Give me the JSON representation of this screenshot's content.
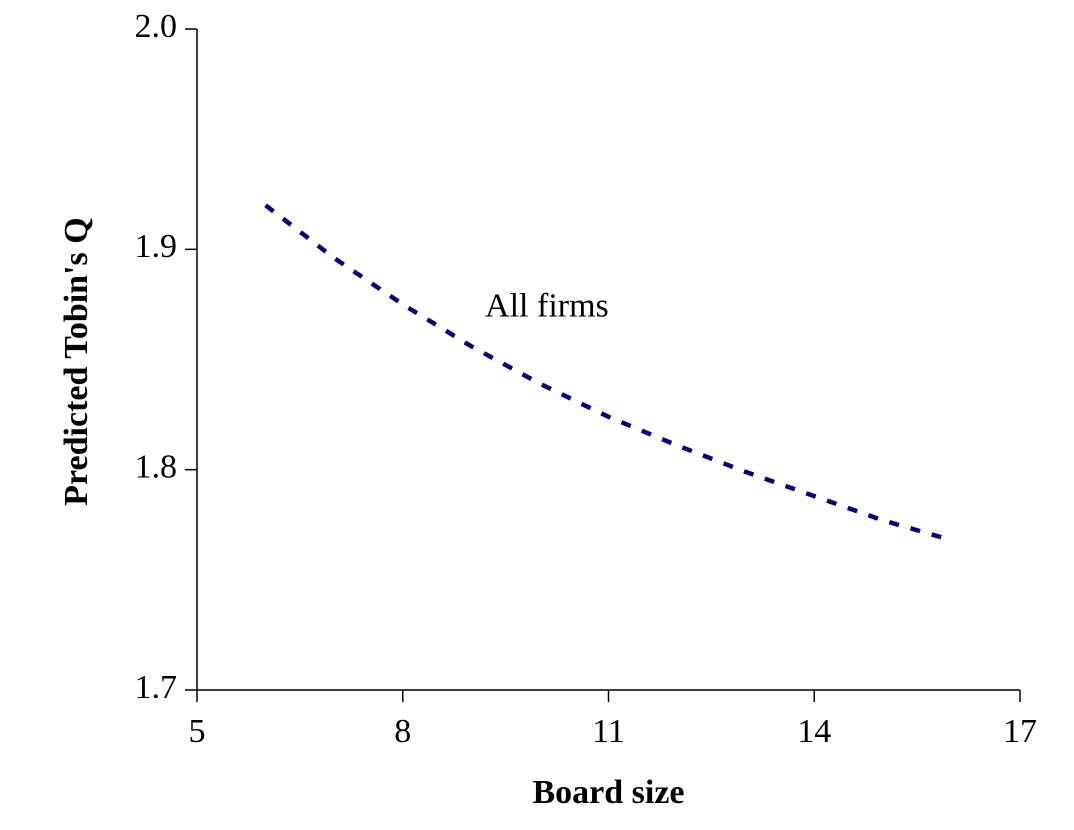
{
  "chart_data": {
    "type": "line",
    "title": "",
    "xlabel": "Board size",
    "ylabel": "Predicted Tobin's Q",
    "xlim": [
      5,
      17
    ],
    "ylim": [
      1.7,
      2.0
    ],
    "xticks": [
      5,
      8,
      11,
      14,
      17
    ],
    "yticks": [
      1.7,
      1.8,
      1.9,
      2.0
    ],
    "xtick_labels": [
      "5",
      "8",
      "11",
      "14",
      "17"
    ],
    "ytick_labels": [
      "1.7",
      "1.8",
      "1.9",
      "2.0"
    ],
    "grid": false,
    "legend": "none",
    "series": [
      {
        "color": "#000080",
        "line_style": "dotted",
        "x": [
          6,
          7,
          8,
          9,
          10,
          11,
          12,
          13,
          14,
          15,
          16
        ],
        "y": [
          1.92,
          1.896,
          1.875,
          1.856,
          1.839,
          1.824,
          1.811,
          1.799,
          1.788,
          1.777,
          1.768
        ]
      }
    ],
    "annotations": [
      {
        "text": "All firms",
        "x": 9.2,
        "y": 1.875
      }
    ]
  }
}
